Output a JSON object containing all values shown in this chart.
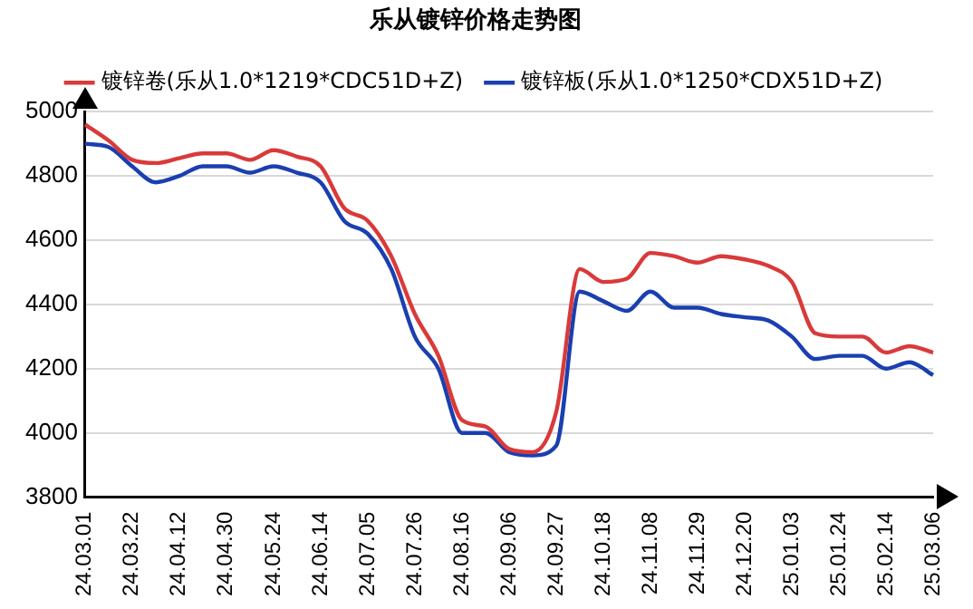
{
  "chart_data": {
    "type": "line",
    "title": "乐从镀锌价格走势图",
    "categories": [
      "24.03.01",
      null,
      "24.03.22",
      null,
      "24.04.12",
      null,
      "24.04.30",
      null,
      "24.05.24",
      null,
      "24.06.14",
      null,
      "24.07.05",
      null,
      "24.07.26",
      null,
      "24.08.16",
      null,
      "24.09.06",
      null,
      "24.09.27",
      null,
      "24.10.18",
      null,
      "24.11.08",
      null,
      "24.11.29",
      null,
      "24.12.20",
      null,
      "25.01.03",
      null,
      "25.01.24",
      null,
      "25.02.14",
      null,
      "25.03.06"
    ],
    "series": [
      {
        "name": "镀锌卷(乐从1.0*1219*CDC51D+Z)",
        "color": "#d93a3a",
        "values": [
          4960,
          4910,
          4850,
          4840,
          4855,
          4870,
          4870,
          4850,
          4880,
          4860,
          4830,
          4700,
          4660,
          4550,
          4370,
          4240,
          4040,
          4020,
          3950,
          3940,
          4065,
          4510,
          4470,
          4480,
          4560,
          4550,
          4530,
          4550,
          4540,
          4520,
          4470,
          4310,
          4300,
          4300,
          4250,
          4270,
          4250
        ]
      },
      {
        "name": "镀锌板(乐从1.0*1250*CDX51D+Z)",
        "color": "#1a3fb0",
        "values": [
          4900,
          4890,
          4830,
          4780,
          4800,
          4830,
          4830,
          4810,
          4830,
          4810,
          4780,
          4660,
          4620,
          4510,
          4300,
          4200,
          4000,
          4000,
          3940,
          3930,
          3960,
          4440,
          4410,
          4380,
          4440,
          4390,
          4390,
          4370,
          4360,
          4350,
          4300,
          4230,
          4240,
          4240,
          4200,
          4220,
          4180
        ]
      }
    ],
    "ylim": [
      3800,
      5000
    ],
    "yticks": [
      3800,
      4000,
      4200,
      4400,
      4600,
      4800,
      5000
    ],
    "grid": "y",
    "legend": "top",
    "marker": "none",
    "line_style": "solid"
  }
}
